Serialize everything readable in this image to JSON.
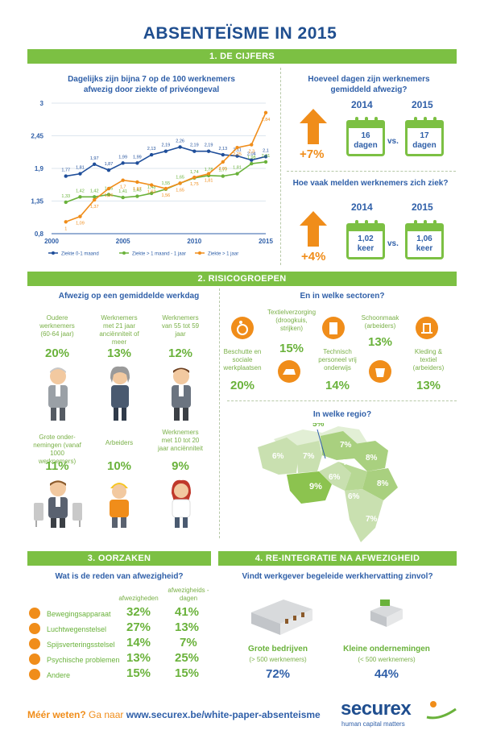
{
  "title": "ABSENTEÏSME IN 2015",
  "section1": {
    "bar": "1. DE CIJFERS",
    "chart_heading": "Dagelijks zijn bijna 7 op de 100 werknemers afwezig door ziekte of privéongeval",
    "days_heading": "Hoeveel dagen zijn werknemers gemiddeld afwezig?",
    "days": {
      "year_a": "2014",
      "year_b": "2015",
      "val_a": "16 dagen",
      "val_b": "17 dagen",
      "vs": "vs.",
      "change": "+7%"
    },
    "freq_heading": "Hoe vaak melden werknemers zich ziek?",
    "freq": {
      "year_a": "2014",
      "year_b": "2015",
      "val_a": "1,02 keer",
      "val_b": "1,06 keer",
      "vs": "vs.",
      "change": "+4%"
    }
  },
  "chart_data": {
    "type": "line",
    "x": [
      2001,
      2002,
      2003,
      2004,
      2005,
      2006,
      2007,
      2008,
      2009,
      2010,
      2011,
      2012,
      2013,
      2014,
      2015
    ],
    "x_ticks": [
      "2000",
      "2005",
      "2010",
      "2015"
    ],
    "y_ticks": [
      "0,8",
      "1,35",
      "1,9",
      "2,45",
      "3"
    ],
    "ylim": [
      0.8,
      3.0
    ],
    "xlim": [
      2000,
      2015
    ],
    "series": [
      {
        "name": "Ziekte 0-1 maand",
        "color": "#1f4e9a",
        "values": [
          1.77,
          1.81,
          1.97,
          1.87,
          1.99,
          1.99,
          2.13,
          2.19,
          2.26,
          2.19,
          2.19,
          2.13,
          2.11,
          2.04,
          2.1
        ],
        "labels": [
          "1,77",
          "1,81",
          "1,97",
          "1,87",
          "1,99",
          "1,99",
          "2,13",
          "2,19",
          "2,26",
          "2,19",
          "2,19",
          "2,13",
          "2,11",
          "2,04",
          "2,1"
        ]
      },
      {
        "name": "Ziekte > 1 maand - 1 jaar",
        "color": "#6ab23b",
        "values": [
          1.33,
          1.42,
          1.42,
          1.46,
          1.41,
          1.43,
          1.48,
          1.55,
          1.65,
          1.74,
          1.78,
          1.77,
          1.81,
          1.98,
          2.01
        ],
        "labels": [
          "1,33",
          "1,42",
          "1,42",
          "1,46",
          "1,41",
          "1,43",
          "1,48",
          "1,55",
          "1,65",
          "1,74",
          "1,78",
          "1,77",
          "1,81",
          "1,98",
          "2,01"
        ]
      },
      {
        "name": "Ziekte > 1 jaar",
        "color": "#f08d1a",
        "values": [
          1.0,
          1.09,
          1.37,
          1.56,
          1.7,
          1.67,
          1.62,
          1.56,
          1.65,
          1.75,
          1.81,
          2.01,
          2.25,
          2.3,
          2.84
        ],
        "labels": [
          "1",
          "1,09",
          "1,37",
          "1,56",
          "1,7",
          "1,67",
          "1,62",
          "1,56",
          "1,65",
          "1,75",
          "1,81",
          "2,01",
          "2,25",
          "2,3",
          "2,84"
        ]
      }
    ]
  },
  "section2": {
    "bar": "2. RISICOGROEPEN",
    "groups_heading": "Afwezig op een gemiddelde werkdag",
    "groups": [
      {
        "label": "Oudere werknemers (60-64 jaar)",
        "value": "20%"
      },
      {
        "label": "Werknemers met 21 jaar anciënniteit of meer",
        "value": "13%"
      },
      {
        "label": "Werknemers van 55 tot 59 jaar",
        "value": "12%"
      },
      {
        "label": "Grote onder-nemingen (vanaf 1000 werknemers)",
        "value": "11%"
      },
      {
        "label": "Arbeiders",
        "value": "10%"
      },
      {
        "label": "Werknemers met 10 tot 20 jaar anciënniteit",
        "value": "9%"
      }
    ],
    "sectors_heading": "En in welke sectoren?",
    "sectors": [
      {
        "label": "Beschutte en sociale werkplaatsen",
        "value": "20%"
      },
      {
        "label": "Textielverzorging (droogkuis, strijken)",
        "value": "15%"
      },
      {
        "label": "Technisch personeel vrij onderwijs",
        "value": "14%"
      },
      {
        "label": "Schoonmaak (arbeiders)",
        "value": "13%"
      },
      {
        "label": "Kleding & textiel (arbeiders)",
        "value": "13%"
      }
    ],
    "region_heading": "In welke regio?",
    "regions": [
      "5%",
      "6%",
      "7%",
      "7%",
      "7%",
      "8%",
      "9%",
      "6%",
      "6%",
      "8%",
      "7%"
    ]
  },
  "section3": {
    "bar": "3. OORZAKEN",
    "heading": "Wat is de reden van afwezigheid?",
    "col_a": "afwezigheden",
    "col_b": "afwezigheids -dagen",
    "rows": [
      {
        "label": "Bewegingsapparaat",
        "a": "32%",
        "b": "41%"
      },
      {
        "label": "Luchtwegenstelsel",
        "a": "27%",
        "b": "13%"
      },
      {
        "label": "Spijsverteringsstelsel",
        "a": "14%",
        "b": "7%"
      },
      {
        "label": "Psychische problemen",
        "a": "13%",
        "b": "25%"
      },
      {
        "label": "Andere",
        "a": "15%",
        "b": "15%"
      }
    ]
  },
  "section4": {
    "bar": "4. RE-INTEGRATIE NA AFWEZIGHEID",
    "heading": "Vindt werkgever begeleide werkhervatting zinvol?",
    "big": {
      "title": "Grote bedrijven",
      "sub": "(> 500 werknemers)",
      "value": "72%"
    },
    "small": {
      "title": "Kleine ondernemingen",
      "sub": "(< 500 werknemers)",
      "value": "44%"
    }
  },
  "footer": {
    "more": "Méér weten?",
    "goto": "Ga naar",
    "url": "www.securex.be/white-paper-absenteisme",
    "brand": "securex",
    "tagline": "human capital matters"
  }
}
